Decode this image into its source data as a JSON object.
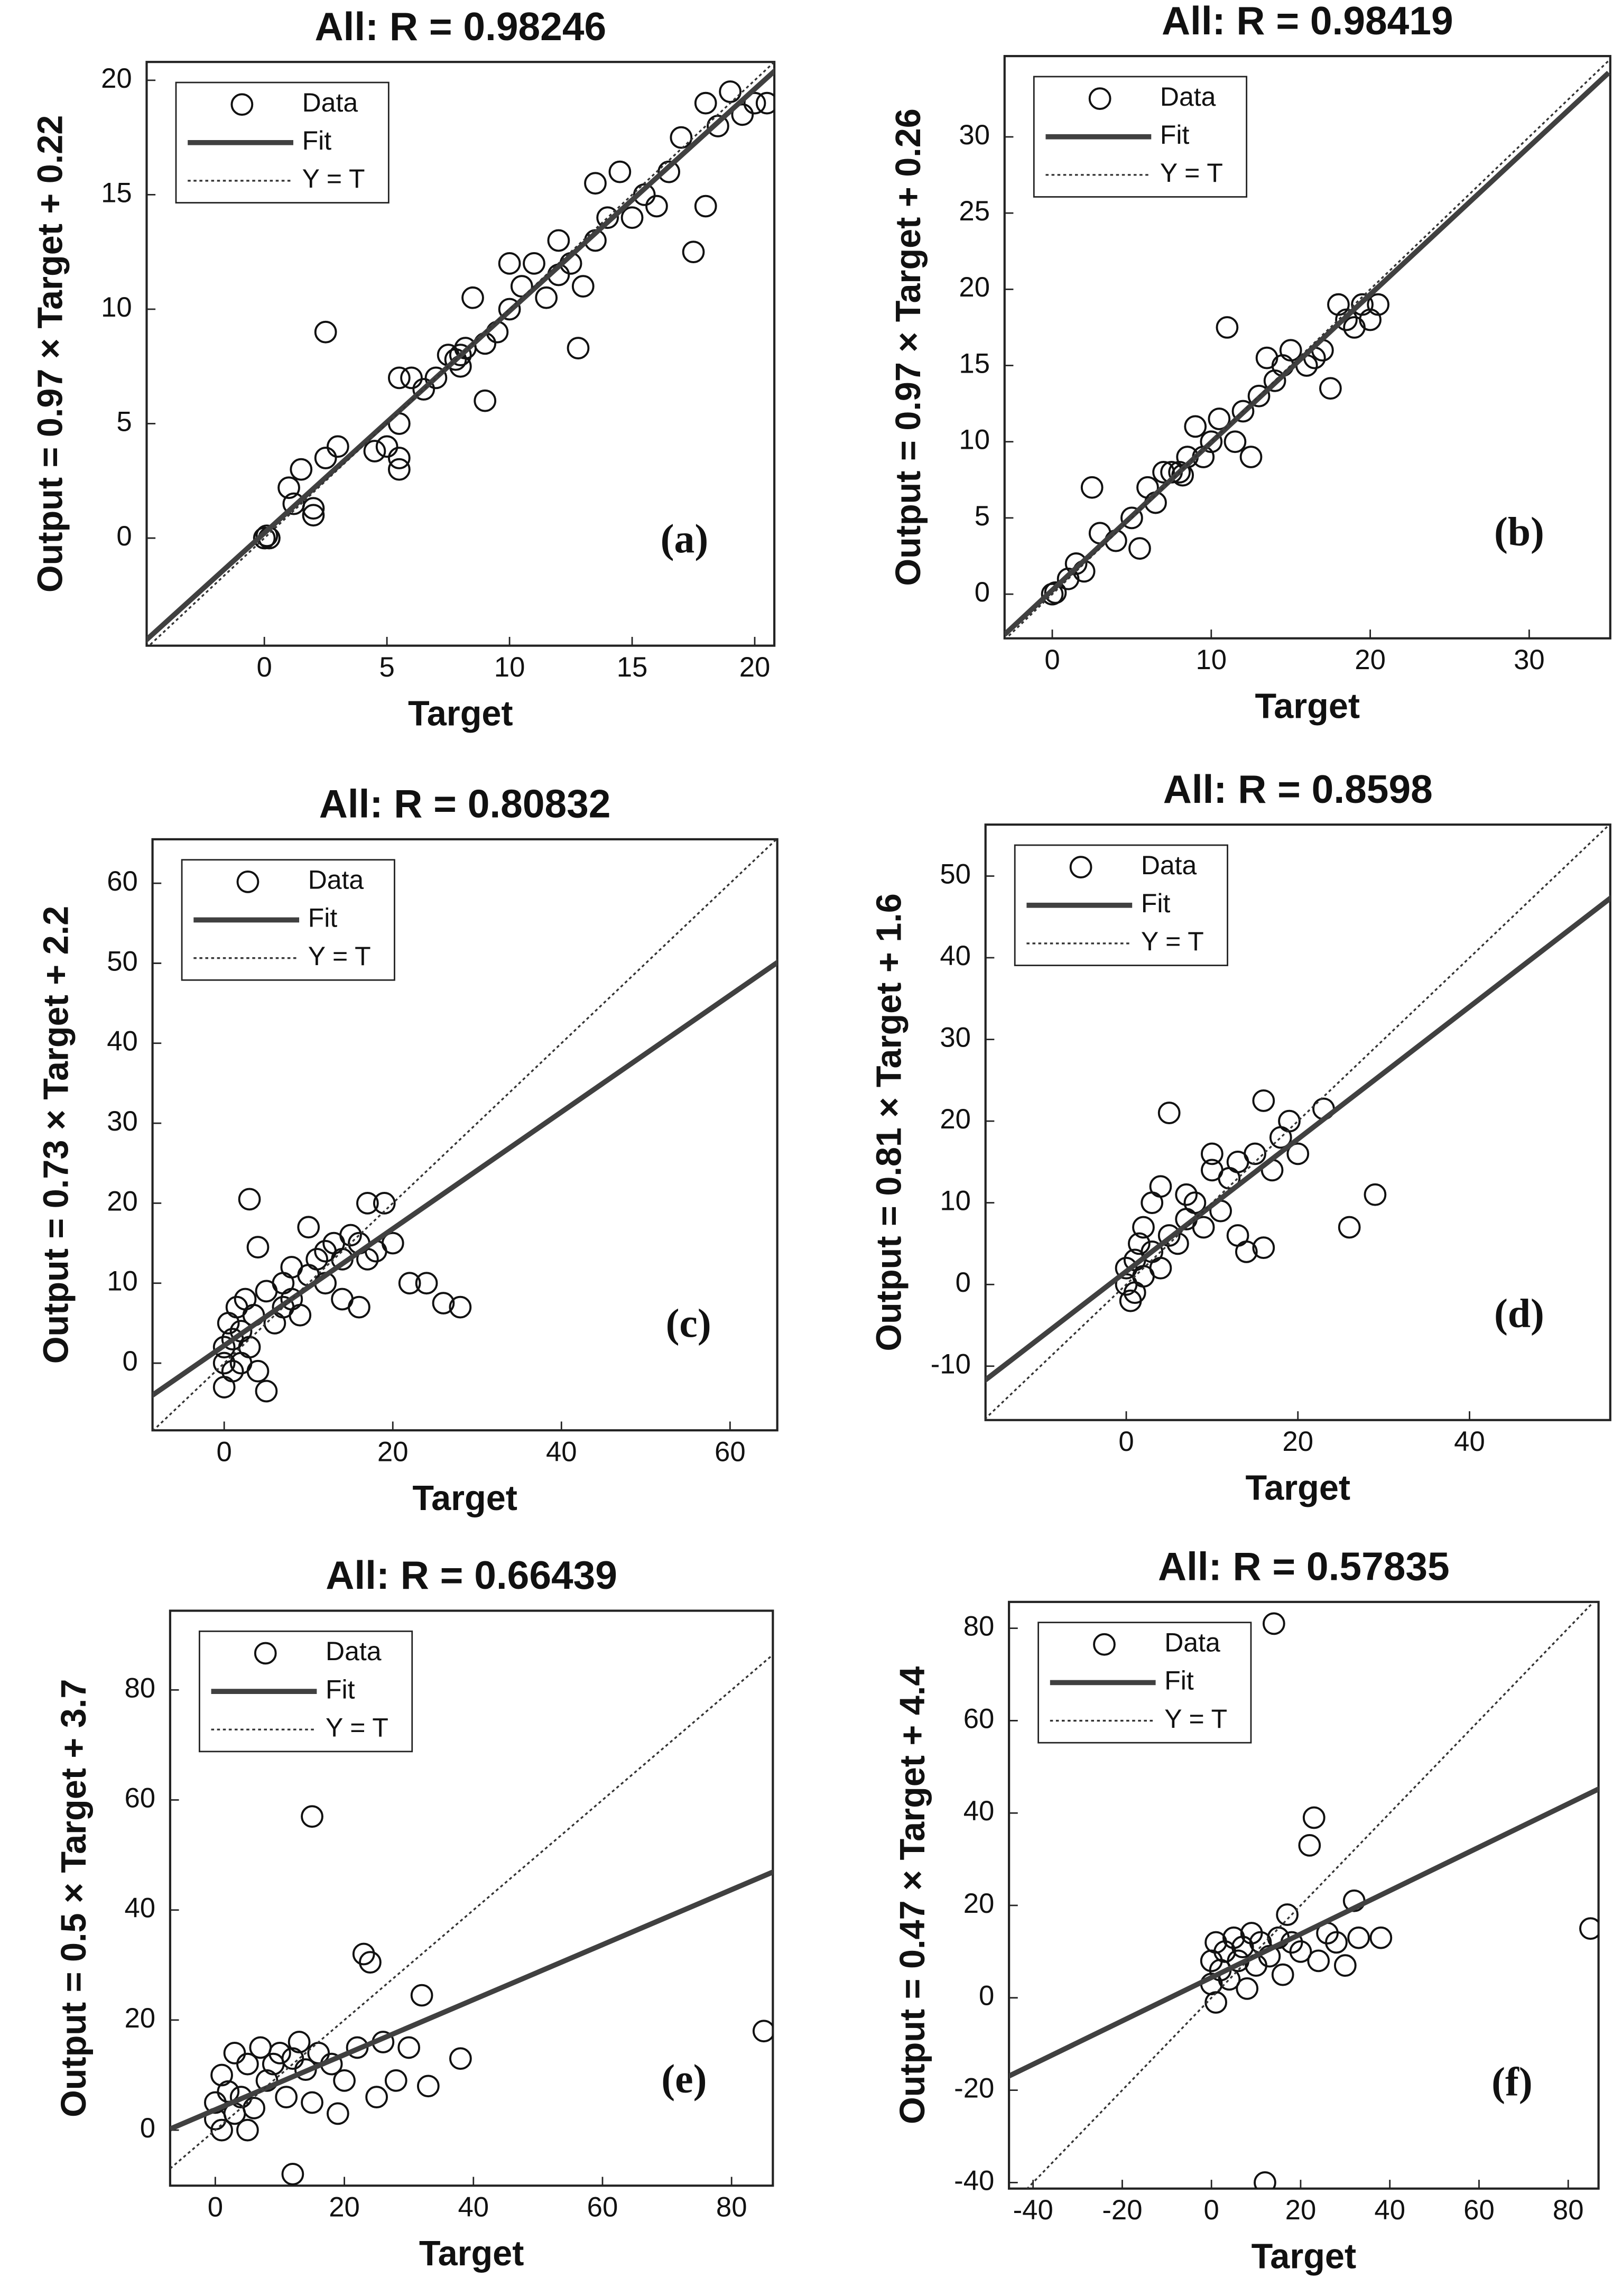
{
  "chart_data": [
    {
      "type": "scatter",
      "title": "All: R = 0.98246",
      "xlabel": "Target",
      "ylabel": "Output = 0.97 × Target + 0.22",
      "annotation": "(a)",
      "xlim": [
        -4.8,
        20.8
      ],
      "ylim": [
        -4.7,
        20.8
      ],
      "xticks": [
        0,
        5,
        10,
        15,
        20
      ],
      "yticks": [
        0,
        5,
        10,
        15,
        20
      ],
      "series": [
        {
          "name": "Data",
          "color": "#111111",
          "x": [
            0,
            0.1,
            0.2,
            1,
            1.2,
            1.5,
            2,
            2,
            2.5,
            2.5,
            3,
            4.5,
            5,
            5.5,
            5.5,
            5.5,
            5.5,
            6,
            6.5,
            7,
            7.5,
            7.8,
            8,
            8.2,
            8,
            8.5,
            9,
            9,
            9.5,
            10,
            10,
            10.5,
            11,
            11.5,
            12,
            12,
            12.5,
            12.8,
            13,
            13.5,
            13.5,
            14,
            14.5,
            15,
            15.5,
            16,
            16.5,
            17,
            17.5,
            18,
            18,
            18.5,
            19,
            19.5,
            20,
            20.5
          ],
          "values": [
            0,
            0.1,
            0,
            2.2,
            1.5,
            3,
            1.3,
            1,
            9,
            3.5,
            4,
            3.8,
            4,
            3.5,
            3,
            5,
            7,
            7,
            6.5,
            7,
            8,
            7.8,
            8,
            8.3,
            7.5,
            10.5,
            6,
            8.5,
            9,
            10,
            12,
            11,
            12,
            10.5,
            13,
            11.5,
            12,
            8.3,
            11,
            13,
            15.5,
            14,
            16,
            14,
            15,
            14.5,
            16,
            17.5,
            12.5,
            14.5,
            19,
            18,
            19.5,
            18.5,
            19,
            19
          ]
        },
        {
          "name": "Fit",
          "color": "#404040",
          "x": [
            -5,
            21
          ],
          "values": [
            -4.63,
            20.59
          ]
        },
        {
          "name": "Y = T",
          "color": "#333333",
          "x": [
            -5,
            21
          ],
          "values": [
            -5,
            21
          ]
        }
      ]
    },
    {
      "type": "scatter",
      "title": "All: R = 0.98419",
      "xlabel": "Target",
      "ylabel": "Output = 0.97 × Target + 0.26",
      "annotation": "(b)",
      "xlim": [
        -3,
        35.1
      ],
      "ylim": [
        -2.9,
        35.3
      ],
      "xticks": [
        0,
        10,
        20,
        30
      ],
      "yticks": [
        0,
        5,
        10,
        15,
        20,
        25,
        30
      ],
      "series": [
        {
          "name": "Data",
          "color": "#111111",
          "x": [
            0,
            0.2,
            1,
            1.5,
            2,
            2.5,
            3,
            4,
            5,
            5.5,
            6,
            6.5,
            7,
            7.5,
            8,
            8.2,
            8.5,
            9,
            9.5,
            10,
            10.5,
            11,
            11.5,
            12,
            12.5,
            13,
            13.5,
            14,
            14.5,
            15,
            16,
            16.5,
            17,
            17.5,
            18,
            18.5,
            19,
            19.5,
            20,
            20.5
          ],
          "values": [
            0,
            0.1,
            1,
            2,
            1.5,
            7,
            4,
            3.5,
            5,
            3,
            7,
            6,
            8,
            8,
            8,
            7.8,
            9,
            11,
            9,
            10,
            11.5,
            17.5,
            10,
            12,
            9,
            13,
            15.5,
            14,
            15,
            16,
            15,
            15.5,
            16,
            13.5,
            19,
            18,
            17.5,
            19,
            18,
            19
          ]
        },
        {
          "name": "Fit",
          "color": "#404040",
          "x": [
            -3,
            35
          ],
          "values": [
            -2.65,
            34.21
          ]
        },
        {
          "name": "Y = T",
          "color": "#333333",
          "x": [
            -3,
            35
          ],
          "values": [
            -3,
            35
          ]
        }
      ]
    },
    {
      "type": "scatter",
      "title": "All: R = 0.80832",
      "xlabel": "Target",
      "ylabel": "Output = 0.73 × Target + 2.2",
      "annotation": "(c)",
      "xlim": [
        -8.5,
        65.6
      ],
      "ylim": [
        -8.4,
        65.5
      ],
      "xticks": [
        0,
        20,
        40,
        60
      ],
      "yticks": [
        0,
        10,
        20,
        30,
        40,
        50,
        60
      ],
      "series": [
        {
          "name": "Data",
          "color": "#111111",
          "x": [
            0,
            0,
            0,
            0.5,
            1,
            1,
            1.5,
            2,
            2,
            2.5,
            3,
            3,
            3.5,
            4,
            4,
            5,
            5,
            6,
            7,
            7,
            8,
            8,
            9,
            10,
            10,
            11,
            12,
            12,
            13,
            14,
            14,
            15,
            16,
            16,
            17,
            17,
            18,
            19,
            20,
            22,
            24,
            26,
            28
          ],
          "values": [
            0,
            -3,
            2,
            5,
            -1,
            3,
            7,
            0,
            4,
            8,
            2,
            20.5,
            6,
            14.5,
            -1,
            -3.5,
            9,
            5,
            10,
            7,
            12,
            8,
            6,
            17,
            11,
            13,
            14,
            10,
            15,
            13,
            8,
            16,
            15,
            7,
            13,
            20,
            14,
            20,
            15,
            10,
            10,
            7.5,
            7
          ]
        },
        {
          "name": "Fit",
          "color": "#404040",
          "x": [
            -9,
            66
          ],
          "values": [
            -4.37,
            50.38
          ]
        },
        {
          "name": "Y = T",
          "color": "#333333",
          "x": [
            -9,
            66
          ],
          "values": [
            -9,
            66
          ]
        }
      ]
    },
    {
      "type": "scatter",
      "title": "All: R = 0.8598",
      "xlabel": "Target",
      "ylabel": "Output = 0.81 × Target + 1.6",
      "annotation": "(d)",
      "xlim": [
        -16.4,
        56.4
      ],
      "ylim": [
        -16.6,
        56.3
      ],
      "xticks": [
        0,
        20,
        40
      ],
      "yticks": [
        -10,
        0,
        10,
        20,
        30,
        40,
        50
      ],
      "series": [
        {
          "name": "Data",
          "color": "#111111",
          "x": [
            0,
            0,
            0.5,
            1,
            1,
            1.5,
            2,
            2,
            3,
            3,
            4,
            4,
            5,
            5,
            6,
            7,
            7,
            8,
            9,
            10,
            10,
            11,
            12,
            13,
            13,
            14,
            15,
            16,
            16,
            17,
            18,
            19,
            20,
            23,
            26,
            29
          ],
          "values": [
            0,
            2,
            -2,
            3,
            -1,
            5,
            1,
            7,
            4,
            10,
            2,
            12,
            21,
            6,
            5,
            8,
            11,
            10,
            7,
            14,
            16,
            9,
            13,
            15,
            6,
            4,
            16,
            22.5,
            4.5,
            14,
            18,
            20,
            16,
            21.5,
            7,
            11
          ]
        },
        {
          "name": "Fit",
          "color": "#404040",
          "x": [
            -17,
            57
          ],
          "values": [
            -12.17,
            47.77
          ]
        },
        {
          "name": "Y = T",
          "color": "#333333",
          "x": [
            -17,
            57
          ],
          "values": [
            -17,
            57
          ]
        }
      ]
    },
    {
      "type": "scatter",
      "title": "All: R = 0.66439",
      "xlabel": "Target",
      "ylabel": "Output = 0.5 × Target + 3.7",
      "annotation": "(e)",
      "xlim": [
        -7,
        86.4
      ],
      "ylim": [
        -10.1,
        94.4
      ],
      "xticks": [
        0,
        20,
        40,
        60,
        80
      ],
      "yticks": [
        0,
        20,
        40,
        60,
        80
      ],
      "series": [
        {
          "name": "Data",
          "color": "#111111",
          "x": [
            0,
            0,
            1,
            1,
            2,
            3,
            3,
            4,
            5,
            5,
            6,
            7,
            8,
            9,
            10,
            11,
            12,
            12,
            13,
            14,
            15,
            15,
            16,
            18,
            19,
            20,
            22,
            23,
            24,
            25,
            26,
            28,
            30,
            32,
            33,
            38,
            85
          ],
          "values": [
            2,
            5,
            10,
            0,
            7,
            14,
            3,
            6,
            12,
            0,
            4,
            15,
            9,
            12,
            14,
            6,
            -8,
            13,
            16,
            11,
            57,
            5,
            14,
            12,
            3,
            9,
            15,
            32,
            30.5,
            6,
            16,
            9,
            15,
            24.5,
            8,
            13,
            18
          ]
        },
        {
          "name": "Fit",
          "color": "#404040",
          "x": [
            -7,
            87
          ],
          "values": [
            0.2,
            47.2
          ]
        },
        {
          "name": "Y = T",
          "color": "#333333",
          "x": [
            -7,
            87
          ],
          "values": [
            -7,
            87
          ]
        }
      ]
    },
    {
      "type": "scatter",
      "title": "All: R = 0.57835",
      "xlabel": "Target",
      "ylabel": "Output = 0.47 × Target + 4.4",
      "annotation": "(f)",
      "xlim": [
        -45.4,
        86.8
      ],
      "ylim": [
        -41.3,
        85.7
      ],
      "xticks": [
        -40,
        -20,
        0,
        20,
        40,
        60,
        80
      ],
      "yticks": [
        -40,
        -20,
        0,
        20,
        40,
        60,
        80
      ],
      "series": [
        {
          "name": "Data",
          "color": "#111111",
          "x": [
            0,
            0,
            1,
            1,
            2,
            3,
            4,
            5,
            6,
            7,
            8,
            9,
            10,
            11,
            12,
            13,
            14,
            15,
            16,
            17,
            18,
            20,
            22,
            23,
            24,
            26,
            28,
            30,
            32,
            33,
            38,
            85
          ],
          "values": [
            3,
            8,
            12,
            -1,
            6,
            10,
            4,
            13,
            8,
            11,
            2,
            14,
            7,
            12,
            -40,
            9,
            81,
            13,
            5,
            18,
            12,
            10,
            33,
            39,
            8,
            14,
            12,
            7,
            21,
            13,
            13,
            15
          ]
        },
        {
          "name": "Fit",
          "color": "#404040",
          "x": [
            -46,
            87
          ],
          "values": [
            -17.22,
            45.29
          ]
        },
        {
          "name": "Y = T",
          "color": "#333333",
          "x": [
            -46,
            87
          ],
          "values": [
            -46,
            87
          ]
        }
      ]
    }
  ]
}
